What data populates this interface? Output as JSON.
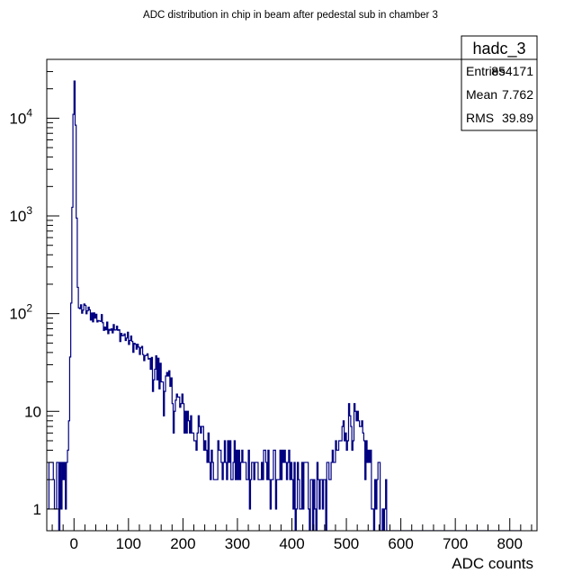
{
  "chart_data": {
    "type": "histogram",
    "title": "ADC distribution in chip in beam after pedestal sub in chamber 3",
    "xlabel": "ADC counts",
    "ylabel": "",
    "xlim": [
      -50,
      850
    ],
    "ylim": [
      0.6,
      40000
    ],
    "log_y": true,
    "grid": false,
    "line_color": "#000080",
    "x_tick_labels": [
      "0",
      "100",
      "200",
      "300",
      "400",
      "500",
      "600",
      "700",
      "800"
    ],
    "x_tick_values": [
      0,
      100,
      200,
      300,
      400,
      500,
      600,
      700,
      800
    ],
    "y_tick_labels": [
      {
        "base": "1",
        "exp": ""
      },
      {
        "base": "10",
        "exp": ""
      },
      {
        "base": "10",
        "exp": "2"
      },
      {
        "base": "10",
        "exp": "3"
      },
      {
        "base": "10",
        "exp": "4"
      }
    ],
    "y_tick_values": [
      1,
      10,
      100,
      1000,
      10000
    ],
    "stats": {
      "name": "hadc_3",
      "rows": [
        {
          "key": "Entries",
          "value": "854171"
        },
        {
          "key": "Mean",
          "value": "7.762"
        },
        {
          "key": "RMS",
          "value": "39.89"
        }
      ]
    },
    "bin_width": 2,
    "peak": {
      "x": 0,
      "value": 24000
    },
    "description_points": [
      {
        "x": -40,
        "y": 2
      },
      {
        "x": -15,
        "y": 2
      },
      {
        "x": -8,
        "y": 10
      },
      {
        "x": -4,
        "y": 300
      },
      {
        "x": -2,
        "y": 5000
      },
      {
        "x": 0,
        "y": 24000
      },
      {
        "x": 2,
        "y": 24000
      },
      {
        "x": 4,
        "y": 3000
      },
      {
        "x": 6,
        "y": 300
      },
      {
        "x": 8,
        "y": 115
      },
      {
        "x": 20,
        "y": 110
      },
      {
        "x": 50,
        "y": 85
      },
      {
        "x": 100,
        "y": 55
      },
      {
        "x": 150,
        "y": 28
      },
      {
        "x": 200,
        "y": 10
      },
      {
        "x": 250,
        "y": 4
      },
      {
        "x": 300,
        "y": 3
      },
      {
        "x": 350,
        "y": 2.5
      },
      {
        "x": 400,
        "y": 2.5
      },
      {
        "x": 450,
        "y": 2
      },
      {
        "x": 480,
        "y": 3
      },
      {
        "x": 500,
        "y": 8
      },
      {
        "x": 510,
        "y": 9
      },
      {
        "x": 530,
        "y": 5
      },
      {
        "x": 550,
        "y": 2
      },
      {
        "x": 600,
        "y": 1
      },
      {
        "x": 650,
        "y": 1
      },
      {
        "x": 800,
        "y": 1
      }
    ]
  }
}
